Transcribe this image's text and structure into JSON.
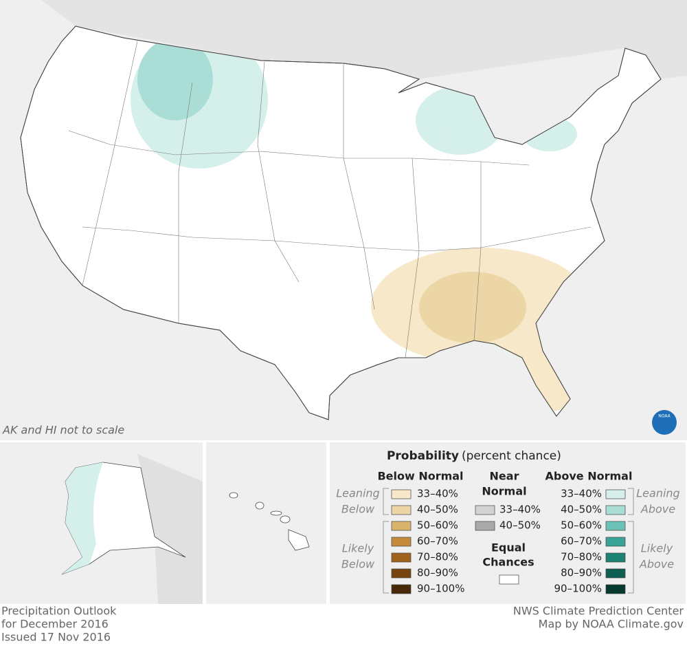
{
  "map": {
    "note": "AK and HI not to scale",
    "logo": "NOAA"
  },
  "legend": {
    "title": "Probability",
    "subtitle": "(percent chance)",
    "below": {
      "heading": [
        "Below Normal"
      ],
      "leaning": [
        "Leaning",
        "Below"
      ],
      "likely": [
        "Likely",
        "Below"
      ],
      "items": [
        {
          "label": "33–40%",
          "color": "#f6e8c8"
        },
        {
          "label": "40–50%",
          "color": "#edd6a6"
        },
        {
          "label": "50–60%",
          "color": "#d8b46c"
        },
        {
          "label": "60–70%",
          "color": "#c58b3c"
        },
        {
          "label": "70–80%",
          "color": "#a0631e"
        },
        {
          "label": "80–90%",
          "color": "#77440f"
        },
        {
          "label": "90–100%",
          "color": "#472907"
        }
      ]
    },
    "near": {
      "heading": [
        "Near",
        "Normal"
      ],
      "items": [
        {
          "label": "33–40%",
          "color": "#d2d2d2"
        },
        {
          "label": "40–50%",
          "color": "#a9a9a9"
        }
      ]
    },
    "equal": {
      "heading": [
        "Equal",
        "Chances"
      ],
      "color": "#ffffff"
    },
    "above": {
      "heading": [
        "Above Normal"
      ],
      "leaning": [
        "Leaning",
        "Above"
      ],
      "likely": [
        "Likely",
        "Above"
      ],
      "items": [
        {
          "label": "33–40%",
          "color": "#d5efeb"
        },
        {
          "label": "40–50%",
          "color": "#a9ddd6"
        },
        {
          "label": "50–60%",
          "color": "#6cc2b6"
        },
        {
          "label": "60–70%",
          "color": "#3aa396"
        },
        {
          "label": "70–80%",
          "color": "#1d8174"
        },
        {
          "label": "80–90%",
          "color": "#0d5f54"
        },
        {
          "label": "90–100%",
          "color": "#05382f"
        }
      ]
    }
  },
  "footer": {
    "left": [
      "Precipitation Outlook",
      "for December 2016",
      "Issued 17 Nov 2016"
    ],
    "right": [
      "NWS Climate Prediction Center",
      "Map by NOAA Climate.gov"
    ]
  }
}
